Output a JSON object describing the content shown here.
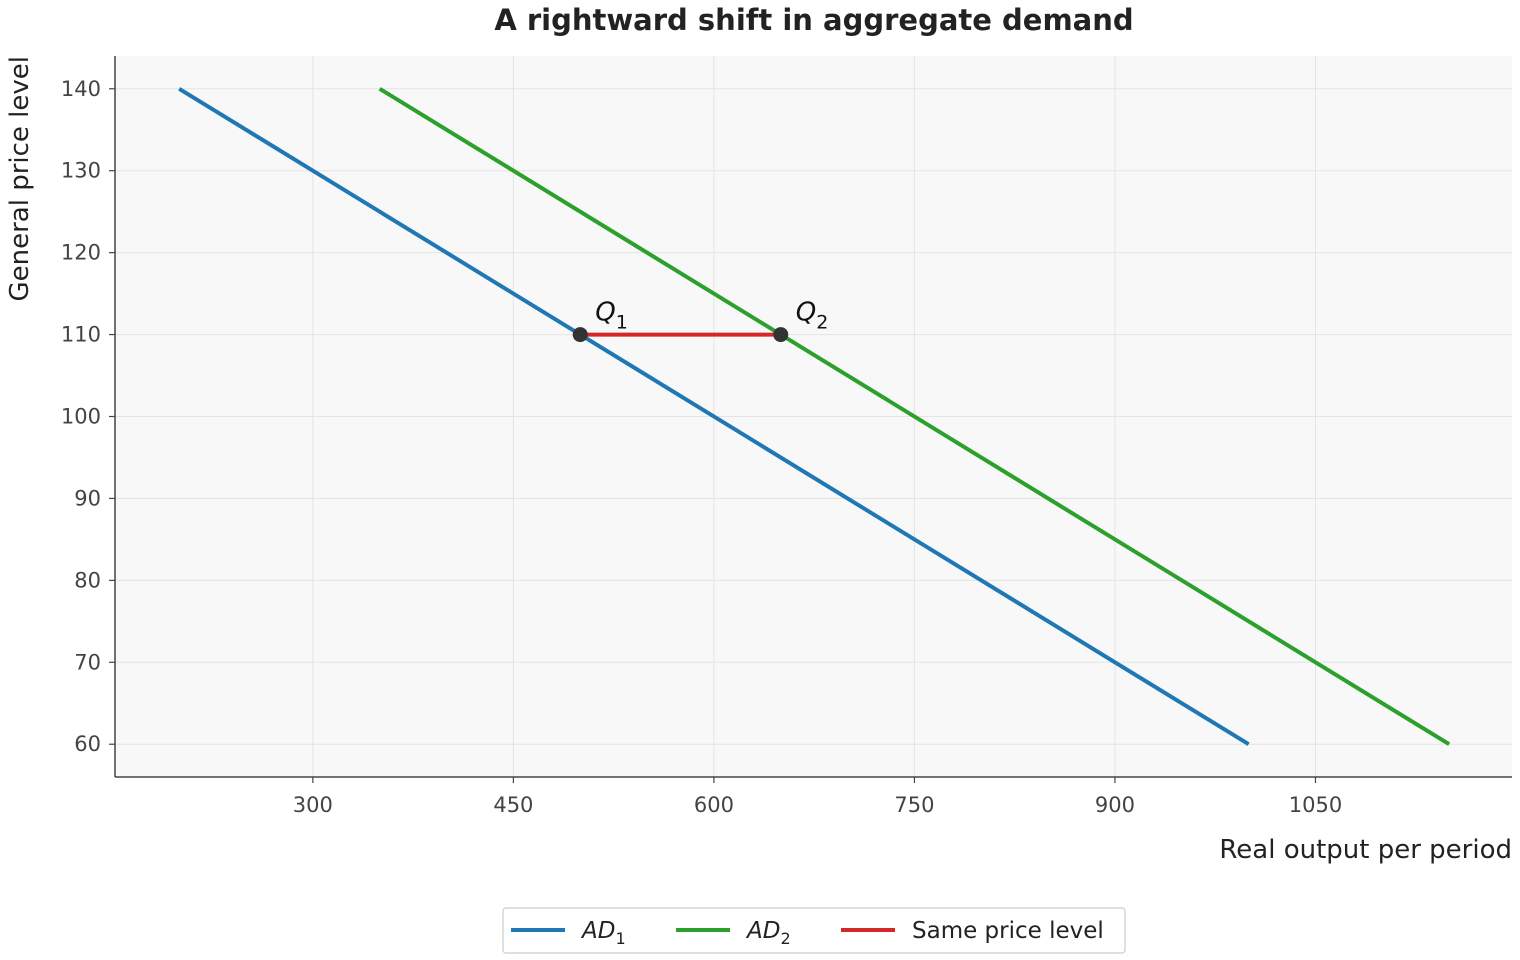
{
  "chart_data": {
    "type": "line",
    "title": "A rightward shift in aggregate demand",
    "xlabel": "Real output per period",
    "ylabel": "General price level",
    "xlim": [
      152,
      1197
    ],
    "ylim": [
      56,
      144
    ],
    "xticks": [
      300,
      450,
      600,
      750,
      900,
      1050
    ],
    "yticks": [
      60,
      70,
      80,
      90,
      100,
      110,
      120,
      130,
      140
    ],
    "grid": true,
    "legend_position": "bottom-center",
    "series": [
      {
        "name": "AD",
        "name_sub": "1",
        "color": "#1f77b4",
        "x": [
          200,
          1000
        ],
        "y": [
          140,
          60
        ]
      },
      {
        "name": "AD",
        "name_sub": "2",
        "color": "#2ca02c",
        "x": [
          350,
          1150
        ],
        "y": [
          140,
          60
        ]
      },
      {
        "name": "Same price level",
        "name_sub": "",
        "color": "#d62728",
        "x": [
          500,
          650
        ],
        "y": [
          110,
          110
        ]
      }
    ],
    "points": [
      {
        "label": "Q",
        "label_sub": "1",
        "x": 500,
        "y": 110,
        "color": "#333333"
      },
      {
        "label": "Q",
        "label_sub": "2",
        "x": 650,
        "y": 110,
        "color": "#333333"
      }
    ]
  }
}
